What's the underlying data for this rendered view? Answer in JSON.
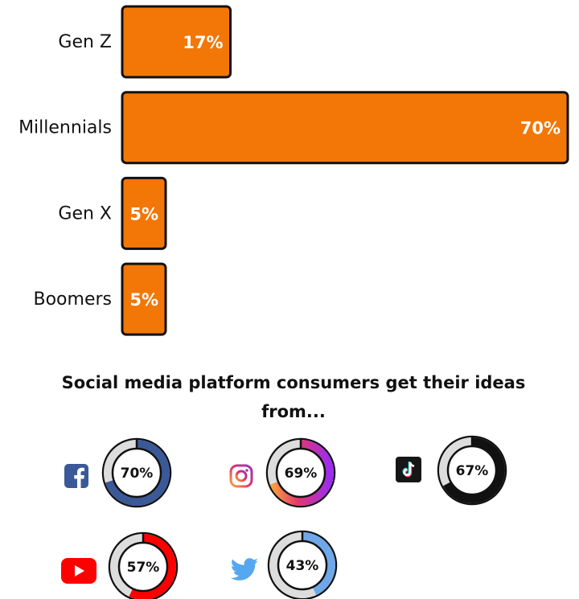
{
  "chart_data": [
    {
      "type": "bar",
      "orientation": "horizontal",
      "categories": [
        "Gen Z",
        "Millennials",
        "Gen X",
        "Boomers"
      ],
      "values": [
        17,
        70,
        5,
        5
      ],
      "value_labels": [
        "17%",
        "70%",
        "5%",
        "5%"
      ],
      "xlim": [
        0,
        70
      ],
      "bar_color": "#f27707"
    },
    {
      "type": "pie",
      "style": "donut",
      "title": "Social media platform consumers get their ideas from...",
      "items": [
        {
          "platform": "Facebook",
          "icon": "facebook-icon",
          "value": 70,
          "label": "70%",
          "color": "#3b5998"
        },
        {
          "platform": "Instagram",
          "icon": "instagram-icon",
          "value": 69,
          "label": "69%",
          "color": "#9b2cf0"
        },
        {
          "platform": "TikTok",
          "icon": "tiktok-icon",
          "value": 67,
          "label": "67%",
          "color": "#111111"
        },
        {
          "platform": "YouTube",
          "icon": "youtube-icon",
          "value": 57,
          "label": "57%",
          "color": "#ff0000"
        },
        {
          "platform": "Twitter",
          "icon": "twitter-icon",
          "value": 43,
          "label": "43%",
          "color": "#6ea8e8"
        }
      ]
    }
  ]
}
